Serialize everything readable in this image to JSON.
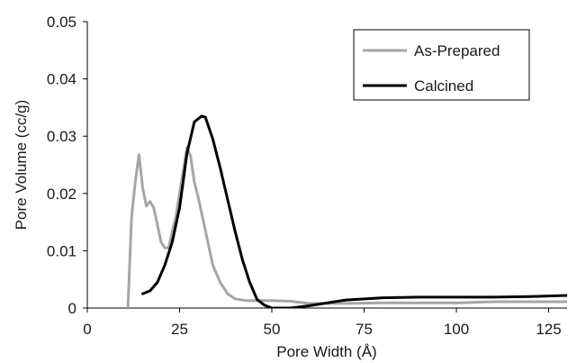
{
  "chart_data": {
    "type": "line",
    "xlabel": "Pore Width (Å)",
    "ylabel": "Pore Volume (cc/g)",
    "xlim": [
      0,
      130
    ],
    "ylim": [
      0,
      0.05
    ],
    "xticks": [
      0,
      25,
      50,
      75,
      100,
      125
    ],
    "yticks": [
      0,
      0.01,
      0.02,
      0.03,
      0.04,
      0.05
    ],
    "ytick_labels": [
      "0",
      "0.01",
      "0.02",
      "0.03",
      "0.04",
      "0.05"
    ],
    "grid": false,
    "legend_position": "top-right",
    "series": [
      {
        "name": "As-Prepared",
        "color": "#a6a6a6",
        "x": [
          11,
          12,
          13,
          14,
          15,
          16,
          17,
          18,
          19,
          20,
          21,
          22,
          24,
          26,
          27,
          28,
          29,
          30,
          32,
          34,
          36,
          38,
          40,
          43,
          46,
          50,
          55,
          60,
          70,
          80,
          90,
          100,
          110,
          120,
          130
        ],
        "y": [
          0.0,
          0.016,
          0.022,
          0.0268,
          0.021,
          0.0178,
          0.0186,
          0.0175,
          0.0145,
          0.0115,
          0.0105,
          0.0105,
          0.016,
          0.024,
          0.028,
          0.0265,
          0.022,
          0.0195,
          0.0135,
          0.0075,
          0.0045,
          0.0025,
          0.0016,
          0.0013,
          0.0013,
          0.0013,
          0.0012,
          0.0008,
          0.0008,
          0.0009,
          0.0009,
          0.0009,
          0.0011,
          0.0011,
          0.0011
        ]
      },
      {
        "name": "Calcined",
        "color": "#000000",
        "x": [
          15,
          17,
          19,
          21,
          23,
          25,
          27,
          29,
          31,
          32,
          34,
          36,
          38,
          40,
          42,
          44,
          46,
          48,
          50,
          55,
          60,
          70,
          80,
          90,
          100,
          110,
          120,
          130
        ],
        "y": [
          0.0025,
          0.003,
          0.0045,
          0.0075,
          0.0115,
          0.0175,
          0.027,
          0.0325,
          0.0335,
          0.0333,
          0.0295,
          0.0245,
          0.019,
          0.0135,
          0.0085,
          0.0045,
          0.0015,
          0.0005,
          0.0,
          0.0,
          0.0004,
          0.0014,
          0.0018,
          0.0019,
          0.0019,
          0.0019,
          0.002,
          0.0022
        ]
      }
    ]
  }
}
